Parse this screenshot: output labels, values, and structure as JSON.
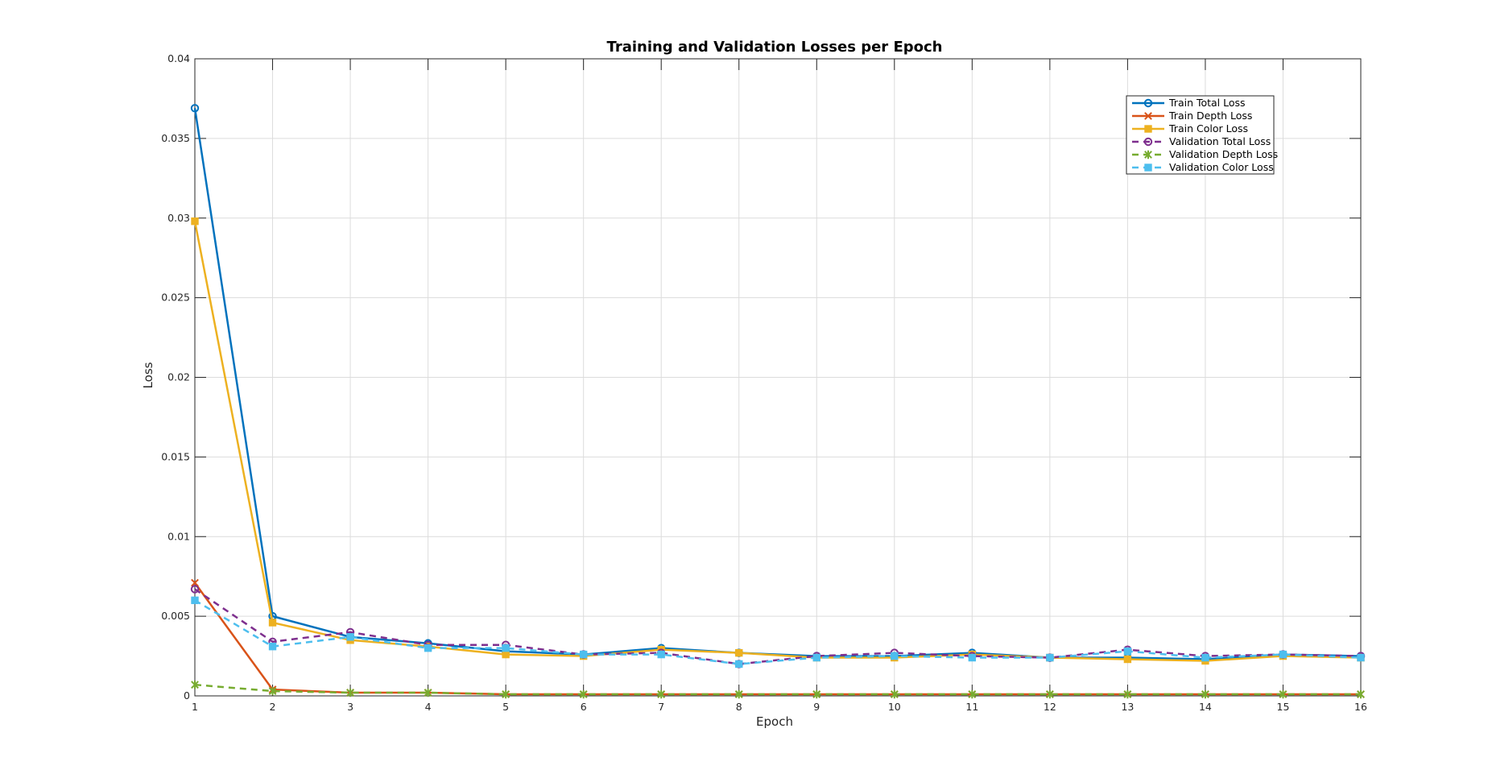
{
  "chart_data": {
    "type": "line",
    "title": "Training and Validation Losses per Epoch",
    "xlabel": "Epoch",
    "ylabel": "Loss",
    "xlim": [
      1,
      16
    ],
    "ylim": [
      0,
      0.04
    ],
    "xticks": [
      "1",
      "2",
      "3",
      "4",
      "5",
      "6",
      "7",
      "8",
      "9",
      "10",
      "11",
      "12",
      "13",
      "14",
      "15",
      "16"
    ],
    "yticks": [
      "0",
      "0.005",
      "0.01",
      "0.015",
      "0.02",
      "0.025",
      "0.03",
      "0.035",
      "0.04"
    ],
    "grid": true,
    "legend_position": "top-right",
    "x": [
      1,
      2,
      3,
      4,
      5,
      6,
      7,
      8,
      9,
      10,
      11,
      12,
      13,
      14,
      15,
      16
    ],
    "series": [
      {
        "name": "Train Total Loss",
        "color": "#0072BD",
        "dash": "solid",
        "marker": "circle",
        "values": [
          0.0369,
          0.005,
          0.0037,
          0.0033,
          0.0028,
          0.0026,
          0.003,
          0.0027,
          0.0025,
          0.0025,
          0.0027,
          0.0024,
          0.0024,
          0.0023,
          0.0026,
          0.0025
        ]
      },
      {
        "name": "Train Depth Loss",
        "color": "#D95319",
        "dash": "solid",
        "marker": "x",
        "values": [
          0.0071,
          0.0004,
          0.0002,
          0.0002,
          0.0001,
          0.0001,
          0.0001,
          0.0001,
          0.0001,
          0.0001,
          0.0001,
          0.0001,
          0.0001,
          0.0001,
          0.0001,
          0.0001
        ]
      },
      {
        "name": "Train Color Loss",
        "color": "#EDB120",
        "dash": "solid",
        "marker": "square",
        "values": [
          0.0298,
          0.0046,
          0.0035,
          0.0031,
          0.0026,
          0.0025,
          0.0029,
          0.0027,
          0.0024,
          0.0024,
          0.0026,
          0.0024,
          0.0023,
          0.0022,
          0.0025,
          0.0024
        ]
      },
      {
        "name": "Validation Total Loss",
        "color": "#7E2F8E",
        "dash": "dashed",
        "marker": "circle",
        "values": [
          0.0067,
          0.0034,
          0.004,
          0.0032,
          0.0032,
          0.0026,
          0.0027,
          0.002,
          0.0025,
          0.0027,
          0.0025,
          0.0024,
          0.0029,
          0.0025,
          0.0026,
          0.0025
        ]
      },
      {
        "name": "Validation Depth Loss",
        "color": "#77AC30",
        "dash": "dashed",
        "marker": "asterisk",
        "values": [
          0.0007,
          0.0003,
          0.0002,
          0.0002,
          0.0001,
          0.0001,
          0.0001,
          0.0001,
          0.0001,
          0.0001,
          0.0001,
          0.0001,
          0.0001,
          0.0001,
          0.0001,
          0.0001
        ]
      },
      {
        "name": "Validation Color Loss",
        "color": "#4DBEEE",
        "dash": "dashed",
        "marker": "square",
        "values": [
          0.006,
          0.0031,
          0.0037,
          0.003,
          0.003,
          0.0026,
          0.0026,
          0.002,
          0.0024,
          0.0025,
          0.0024,
          0.0024,
          0.0028,
          0.0024,
          0.0026,
          0.0024
        ]
      }
    ]
  }
}
